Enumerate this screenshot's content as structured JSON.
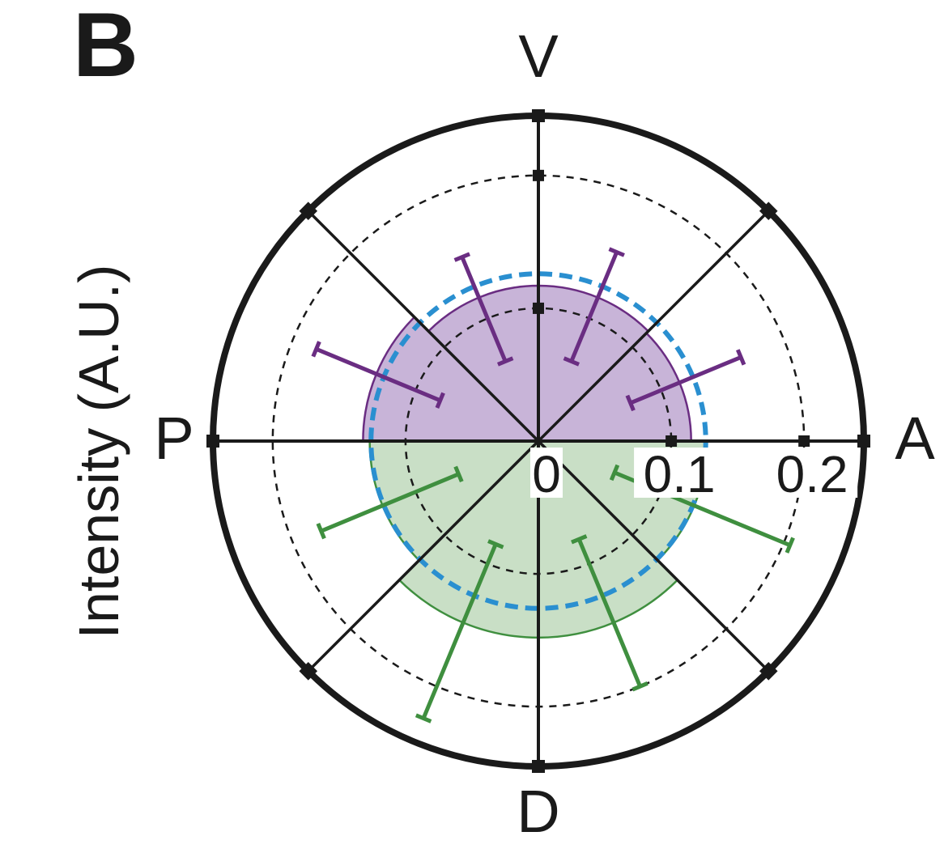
{
  "panel_label": "B",
  "y_axis_label": "Intensity (A.U.)",
  "colors": {
    "upper_fill": "#c8b4d8",
    "upper_line": "#6a2d82",
    "lower_fill": "#c9dfc6",
    "lower_line": "#3f8f3f",
    "mean_circle": "#2a8fd0",
    "axis": "#1a1a1a"
  },
  "chart_data": {
    "type": "polar-bar",
    "direction_labels": {
      "top": "V",
      "bottom": "D",
      "left": "P",
      "right": "A"
    },
    "radial_ticks": [
      0,
      0.1,
      0.2
    ],
    "radial_tick_labels": [
      "0",
      "0.1",
      "0.2"
    ],
    "r_max": 0.245,
    "grid": "dashed circles at 0.1 and 0.2",
    "reference_circle_radius": 0.126,
    "sectors": [
      {
        "group": "V",
        "angle_start": 0,
        "angle_end": 45,
        "value": 0.115,
        "error_low": 0.075,
        "error_high": 0.165
      },
      {
        "group": "V",
        "angle_start": 45,
        "angle_end": 90,
        "value": 0.117,
        "error_low": 0.065,
        "error_high": 0.154
      },
      {
        "group": "V",
        "angle_start": 90,
        "angle_end": 135,
        "value": 0.117,
        "error_low": 0.065,
        "error_high": 0.15
      },
      {
        "group": "V",
        "angle_start": 135,
        "angle_end": 180,
        "value": 0.132,
        "error_low": 0.08,
        "error_high": 0.181
      },
      {
        "group": "D",
        "angle_start": 180,
        "angle_end": 225,
        "value": 0.127,
        "error_low": 0.065,
        "error_high": 0.177
      },
      {
        "group": "D",
        "angle_start": 225,
        "angle_end": 270,
        "value": 0.148,
        "error_low": 0.084,
        "error_high": 0.226
      },
      {
        "group": "D",
        "angle_start": 270,
        "angle_end": 315,
        "value": 0.148,
        "error_low": 0.08,
        "error_high": 0.2
      },
      {
        "group": "D",
        "angle_start": 315,
        "angle_end": 360,
        "value": 0.127,
        "error_low": 0.062,
        "error_high": 0.205
      }
    ]
  }
}
